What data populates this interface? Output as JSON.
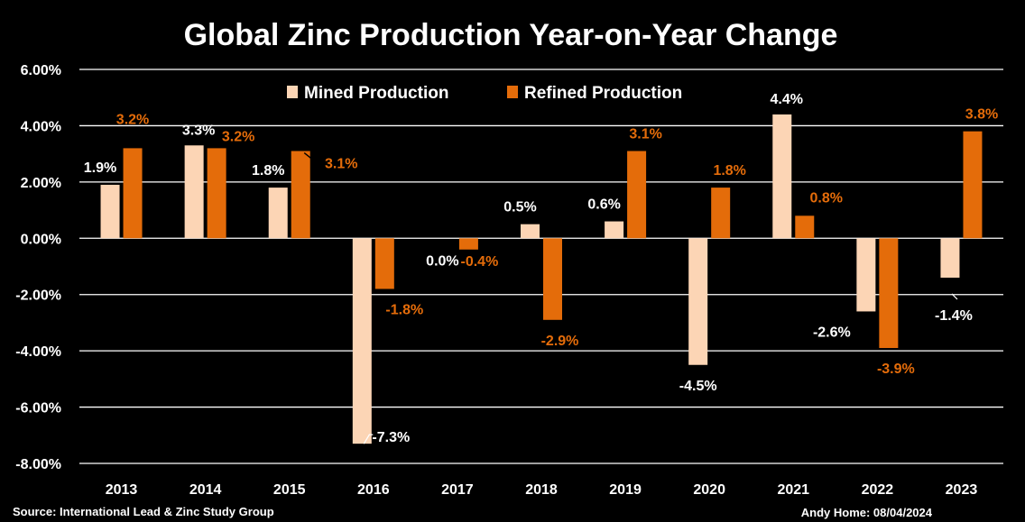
{
  "chart_data": {
    "type": "bar",
    "title": "Global Zinc Production Year-on-Year Change",
    "categories": [
      "2013",
      "2014",
      "2015",
      "2016",
      "2017",
      "2018",
      "2019",
      "2020",
      "2021",
      "2022",
      "2023"
    ],
    "series": [
      {
        "name": "Mined Production",
        "color": "#FCD5B5",
        "values": [
          1.9,
          3.3,
          1.8,
          -7.3,
          0.0,
          0.5,
          0.6,
          -4.5,
          4.4,
          -2.6,
          -1.4
        ],
        "labels": [
          "1.9%",
          "3.3%",
          "1.8%",
          "-7.3%",
          "0.0%",
          "0.5%",
          "0.6%",
          "-4.5%",
          "4.4%",
          "-2.6%",
          "-1.4%"
        ],
        "label_color": "#FFFFFF"
      },
      {
        "name": "Refined Production",
        "color": "#E46C0A",
        "values": [
          3.2,
          3.2,
          3.1,
          -1.8,
          -0.4,
          -2.9,
          3.1,
          1.8,
          0.8,
          -3.9,
          3.8
        ],
        "labels": [
          "3.2%",
          "3.2%",
          "3.1%",
          "-1.8%",
          "-0.4%",
          "-2.9%",
          "3.1%",
          "1.8%",
          "0.8%",
          "-3.9%",
          "3.8%"
        ],
        "label_color": "#E46C0A"
      }
    ],
    "ylim": [
      -8,
      6
    ],
    "y_ticks": [
      "6.00%",
      "4.00%",
      "2.00%",
      "0.00%",
      "-2.00%",
      "-4.00%",
      "-6.00%",
      "-8.00%"
    ],
    "y_tick_values": [
      6,
      4,
      2,
      0,
      -2,
      -4,
      -6,
      -8
    ],
    "grid": true,
    "legend_position": "top-center",
    "xlabel": "",
    "ylabel": ""
  },
  "footer": {
    "source": "Source: International Lead & Zinc Study Group",
    "credit": "Andy Home: 08/04/2024"
  }
}
